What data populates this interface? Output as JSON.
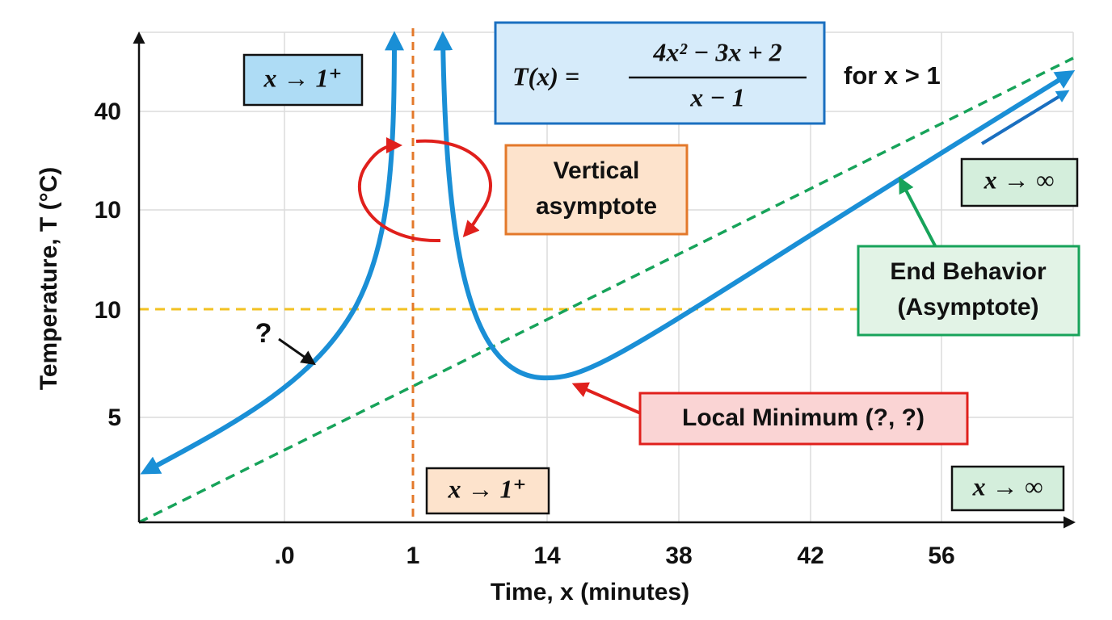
{
  "x_axis": {
    "title": "Time, x (minutes)",
    "ticks": [
      ".0",
      "1",
      "14",
      "38",
      "42",
      "56"
    ]
  },
  "y_axis": {
    "title": "Temperature, T (°C)",
    "ticks": [
      "40",
      "10",
      "10",
      "5"
    ]
  },
  "formula": {
    "lhs": "T(x) =",
    "numerator": "4x² − 3x + 2",
    "denominator": "x − 1",
    "condition": "for x > 1"
  },
  "annotations": {
    "left_limit_top": "x → 1⁺",
    "left_limit_bottom": "x → 1⁺",
    "right_limit_top": "x → ∞",
    "right_limit_bottom": "x → ∞",
    "vertical_asymptote": [
      "Vertical",
      "asymptote"
    ],
    "end_behavior": [
      "End Behavior",
      "(Asymptote)"
    ],
    "question": "?",
    "local_minimum": "Local Minimum (?, ?)"
  }
}
